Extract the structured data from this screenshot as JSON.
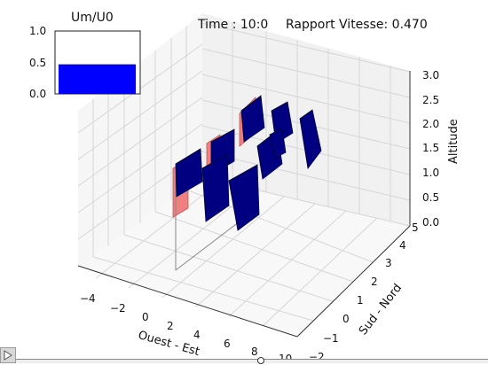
{
  "window": {
    "time_text": "Time : 10:0",
    "speed_ratio_text": "Rapport Vitesse: 0.470"
  },
  "inset": {
    "title": "Um/U0",
    "yticks": [
      "1.0",
      "0.5",
      "0.0"
    ],
    "bar_value": 0.47,
    "bar_color": "#0000ff"
  },
  "axes3d": {
    "xlabel": "Ouest - Est",
    "ylabel": "Sud - Nord",
    "zlabel": "Altitude",
    "xticks": [
      "−4",
      "−2",
      "0",
      "2",
      "4",
      "6",
      "8",
      "10"
    ],
    "yticks": [
      "−2",
      "−1",
      "0",
      "1",
      "2",
      "3",
      "4",
      "5"
    ],
    "zticks": [
      "0.0",
      "0.5",
      "1.0",
      "1.5",
      "2.0",
      "2.5",
      "3.0"
    ]
  },
  "colors": {
    "panel_face": "#000080",
    "panel_shadow": "#f08080",
    "grid": "#dcdcdc",
    "pane": "#f4f4f4"
  },
  "controls": {
    "play_icon": "play-icon",
    "progress_value": 0.5
  }
}
